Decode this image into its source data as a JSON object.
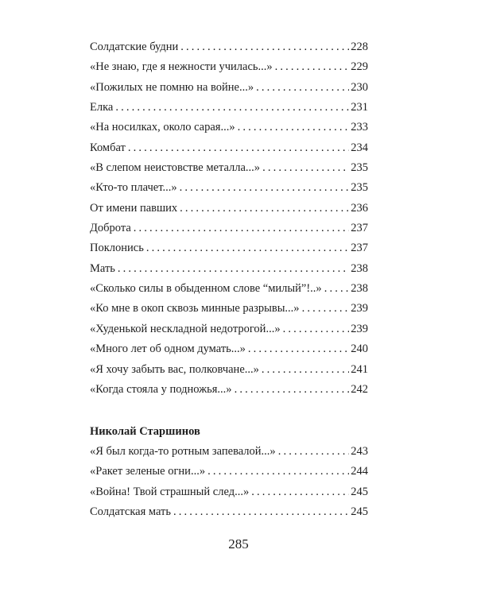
{
  "entries": [
    {
      "title": "Солдатские будни",
      "page": "228"
    },
    {
      "title": "«Не знаю, где я нежности училась...»",
      "page": "229"
    },
    {
      "title": "«Пожилых не помню на войне...»",
      "page": "230"
    },
    {
      "title": "Елка",
      "page": "231"
    },
    {
      "title": "«На носилках, около сарая...»",
      "page": "233"
    },
    {
      "title": "Комбат",
      "page": "234"
    },
    {
      "title": "«В слепом неистовстве металла...»",
      "page": "235"
    },
    {
      "title": "«Кто-то плачет...»",
      "page": "235"
    },
    {
      "title": "От имени павших",
      "page": "236"
    },
    {
      "title": "Доброта",
      "page": "237"
    },
    {
      "title": "Поклонись",
      "page": "237"
    },
    {
      "title": "Мать",
      "page": "238"
    },
    {
      "title": "«Сколько силы в обыденном слове “милый”!..»",
      "page": "238"
    },
    {
      "title": "«Ко мне в окоп сквозь минные разрывы...»",
      "page": "239"
    },
    {
      "title": "«Худенькой нескладной недотрогой...»",
      "page": "239"
    },
    {
      "title": "«Много лет об одном думать...»",
      "page": "240"
    },
    {
      "title": "«Я хочу забыть вас, полковчане...»",
      "page": "241"
    },
    {
      "title": "«Когда стояла у подножья...»",
      "page": "242"
    }
  ],
  "section": {
    "author": "Николай Старшинов",
    "entries": [
      {
        "title": "«Я был когда-то ротным запевалой...»",
        "page": "243"
      },
      {
        "title": "«Ракет зеленые огни...»",
        "page": "244"
      },
      {
        "title": "«Война! Твой страшный след...»",
        "page": "245"
      },
      {
        "title": "Солдатская мать",
        "page": "245"
      }
    ]
  },
  "page_number": "285"
}
